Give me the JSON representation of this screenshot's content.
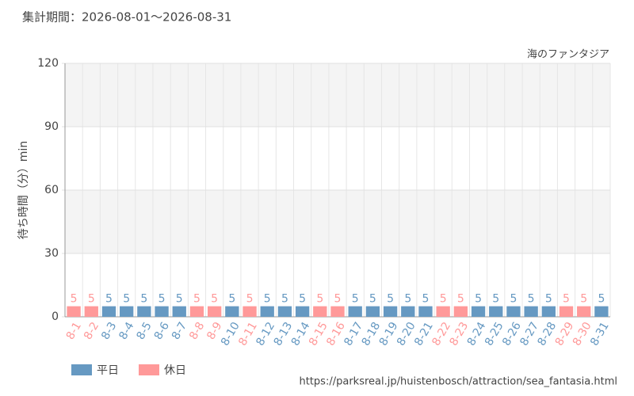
{
  "chart_data": {
    "type": "bar",
    "subtitle": "集計期間：2026-08-01～2026-08-31",
    "title": "海のファンタジア",
    "y_label": "待ち時間（分）min",
    "source": "https://parksreal.jp/huistenbosch/attraction/sea_fantasia.html",
    "categories": [
      "8-1",
      "8-2",
      "8-3",
      "8-4",
      "8-5",
      "8-6",
      "8-7",
      "8-8",
      "8-9",
      "8-10",
      "8-11",
      "8-12",
      "8-13",
      "8-14",
      "8-15",
      "8-16",
      "8-17",
      "8-18",
      "8-19",
      "8-20",
      "8-21",
      "8-22",
      "8-23",
      "8-24",
      "8-25",
      "8-26",
      "8-27",
      "8-28",
      "8-29",
      "8-30",
      "8-31"
    ],
    "series": [
      {
        "name": "平日",
        "color": "#6699c2",
        "values": [
          null,
          null,
          5,
          5,
          5,
          5,
          5,
          null,
          null,
          5,
          null,
          5,
          5,
          5,
          null,
          null,
          5,
          5,
          5,
          5,
          5,
          null,
          null,
          5,
          5,
          5,
          5,
          5,
          null,
          null,
          5
        ]
      },
      {
        "name": "休日",
        "color": "#ff9999",
        "values": [
          5,
          5,
          null,
          null,
          null,
          null,
          null,
          5,
          5,
          null,
          5,
          null,
          null,
          null,
          5,
          5,
          null,
          null,
          null,
          null,
          null,
          5,
          5,
          null,
          null,
          null,
          null,
          null,
          5,
          5,
          null
        ]
      }
    ],
    "ylim": [
      0,
      120
    ],
    "yticks": [
      0,
      30,
      60,
      90,
      120
    ],
    "grid": true
  }
}
